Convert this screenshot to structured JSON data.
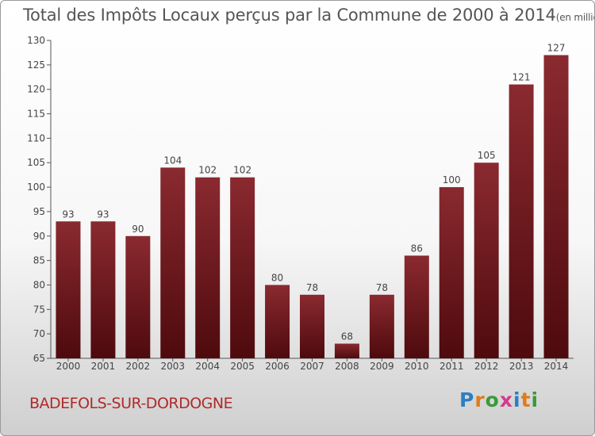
{
  "header": {
    "title": "Total des Impôts Locaux perçus par la Commune de 2000 à 2014",
    "unit": "(en milliers d'€)"
  },
  "footer": {
    "commune": "BADEFOLS-SUR-DORDOGNE",
    "logo_letters": [
      "P",
      "r",
      "o",
      "x",
      "i",
      "t",
      "i"
    ],
    "logo_colors": [
      "#2b7fc2",
      "#e07b1a",
      "#3a9a3a",
      "#d63a8a",
      "#2b7fc2",
      "#e07b1a",
      "#3a9a3a"
    ]
  },
  "chart_data": {
    "type": "bar",
    "categories": [
      "2000",
      "2001",
      "2002",
      "2003",
      "2004",
      "2005",
      "2006",
      "2007",
      "2008",
      "2009",
      "2010",
      "2011",
      "2012",
      "2013",
      "2014"
    ],
    "values": [
      93,
      93,
      90,
      104,
      102,
      102,
      80,
      78,
      68,
      78,
      86,
      100,
      105,
      121,
      127
    ],
    "ylim": [
      65,
      130
    ],
    "yticks": [
      65,
      70,
      75,
      80,
      85,
      90,
      95,
      100,
      105,
      110,
      115,
      120,
      125,
      130
    ],
    "bar_color": "#7a1a1f",
    "grid": false
  }
}
